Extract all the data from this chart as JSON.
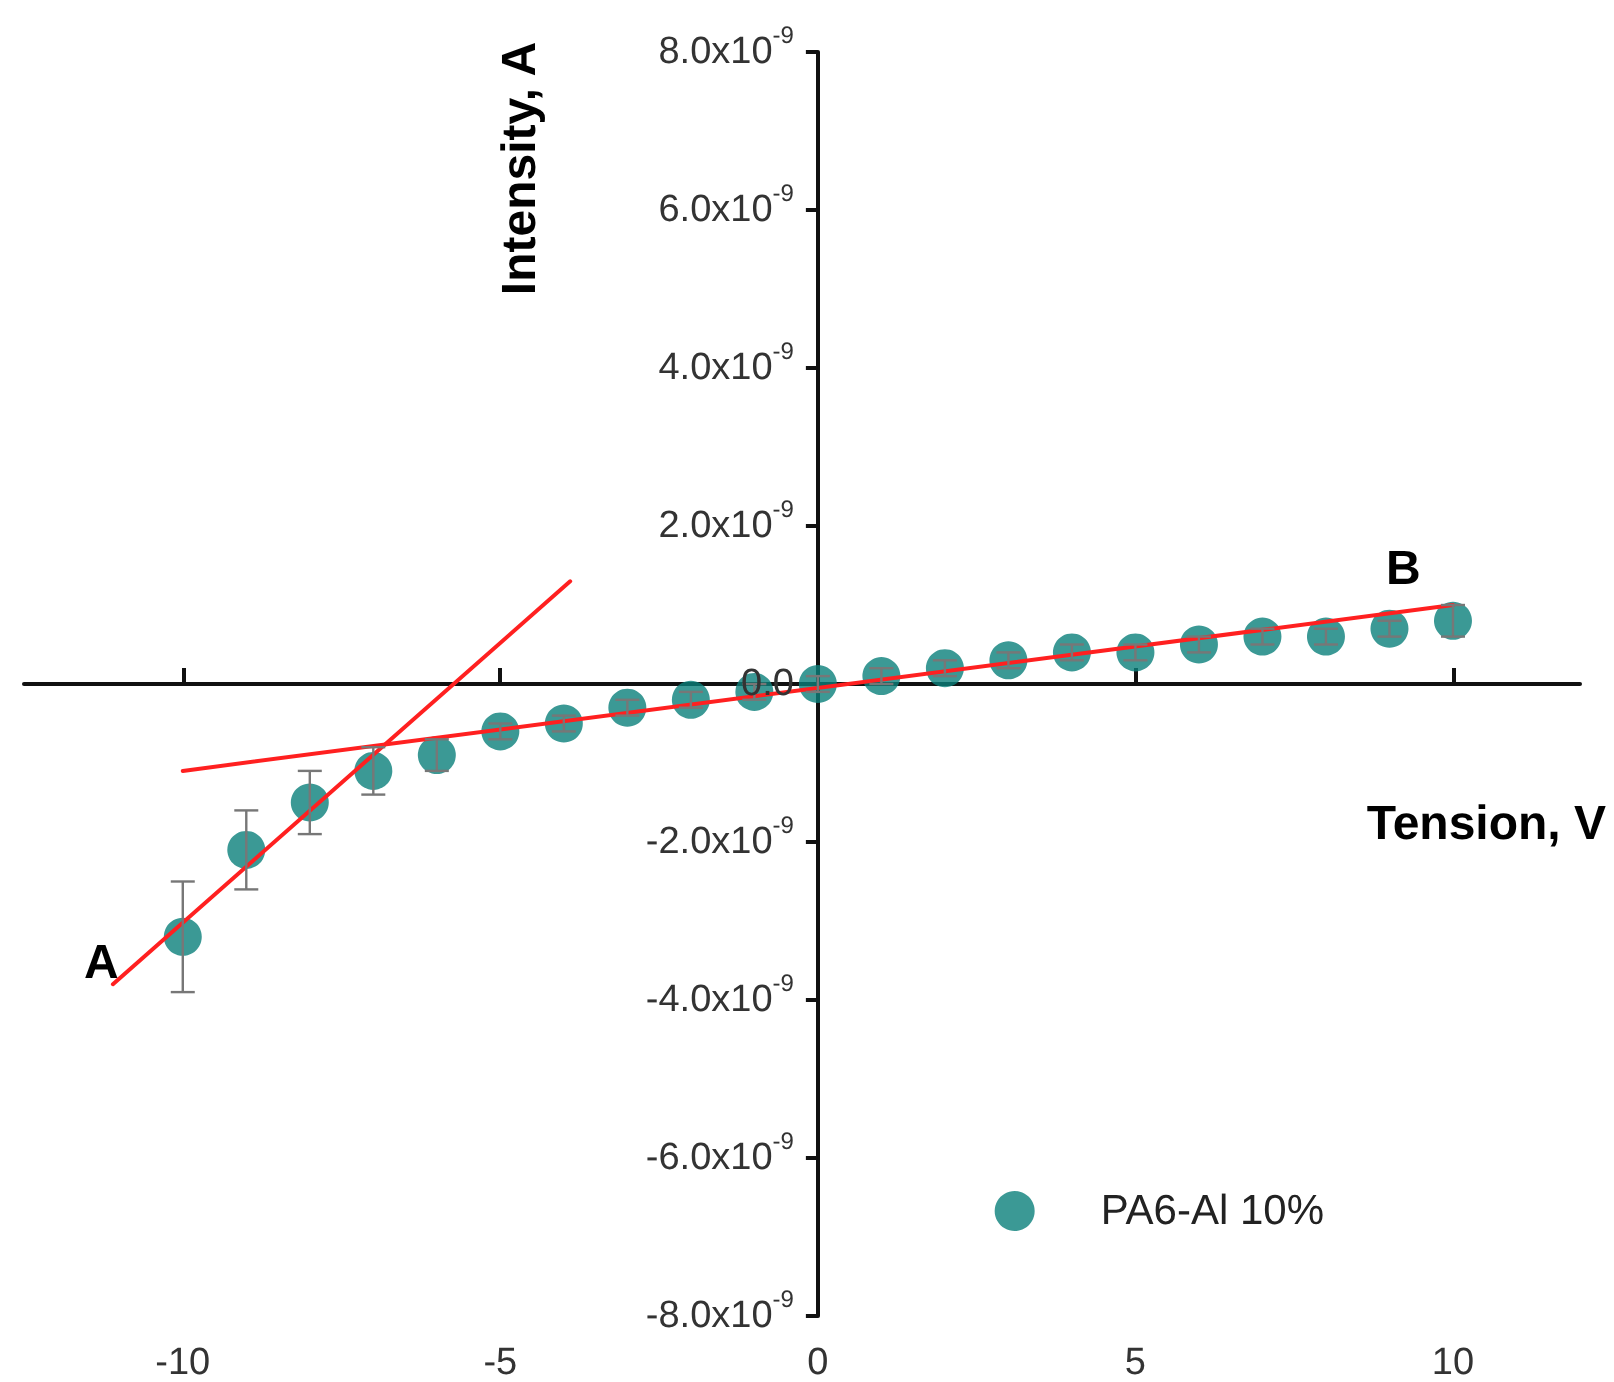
{
  "chart_data": {
    "type": "scatter",
    "xlabel": "Tension, V",
    "ylabel": "Intensity, A",
    "xlim": [
      -12.5,
      12
    ],
    "xticks": [
      -10,
      -5,
      0,
      5,
      10
    ],
    "ylim": [
      -8e-09,
      8e-09
    ],
    "yticks": [
      {
        "value": -8e-09,
        "label": "-8.0x10$^{-9}$"
      },
      {
        "value": -6e-09,
        "label": "-6.0x10$^{-9}$"
      },
      {
        "value": -4e-09,
        "label": "-4.0x10$^{-9}$"
      },
      {
        "value": -2e-09,
        "label": "-2.0x10$^{-9}$"
      },
      {
        "value": 0,
        "label": "0.0"
      },
      {
        "value": 2e-09,
        "label": "2.0x10$^{-9}$"
      },
      {
        "value": 4e-09,
        "label": "4.0x10$^{-9}$"
      },
      {
        "value": 6e-09,
        "label": "6.0x10$^{-9}$"
      },
      {
        "value": 8e-09,
        "label": "8.0x10$^{-9}$"
      }
    ],
    "legend": "bottom right",
    "marker": "circle",
    "series": [
      {
        "name": "PA6-Al 10%",
        "color": "#0a7f7a",
        "x": [
          -10,
          -9,
          -8,
          -7,
          -6,
          -5,
          -4,
          -3,
          -2,
          -1,
          0,
          1,
          2,
          3,
          4,
          5,
          6,
          7,
          8,
          9,
          10
        ],
        "values": [
          -3.2e-09,
          -2.1e-09,
          -1.5e-09,
          -1.1e-09,
          -9e-10,
          -6e-10,
          -5e-10,
          -3e-10,
          -2e-10,
          -1e-10,
          0,
          1e-10,
          2e-10,
          3e-10,
          4e-10,
          4e-10,
          5e-10,
          6e-10,
          6e-10,
          7e-10,
          8e-10
        ],
        "errors": [
          7e-10,
          5e-10,
          4e-10,
          3e-10,
          2e-10,
          1e-10,
          1e-10,
          1e-10,
          1e-10,
          1e-10,
          1e-10,
          1e-10,
          1e-10,
          1e-10,
          1e-10,
          1e-10,
          1e-10,
          1e-10,
          1e-10,
          1e-10,
          2e-10
        ]
      },
      {
        "type": "line",
        "color": "#ff2020",
        "marker": "none",
        "line_style": "solid",
        "x": [
          -11.1,
          -3.9
        ],
        "values": [
          -3.8e-09,
          1.3e-09
        ]
      },
      {
        "type": "line",
        "color": "#ff2020",
        "marker": "none",
        "line_style": "solid",
        "x": [
          -10,
          10
        ],
        "values": [
          -1.1e-09,
          1e-09
        ]
      }
    ],
    "annotations": [
      "A",
      "B"
    ]
  }
}
